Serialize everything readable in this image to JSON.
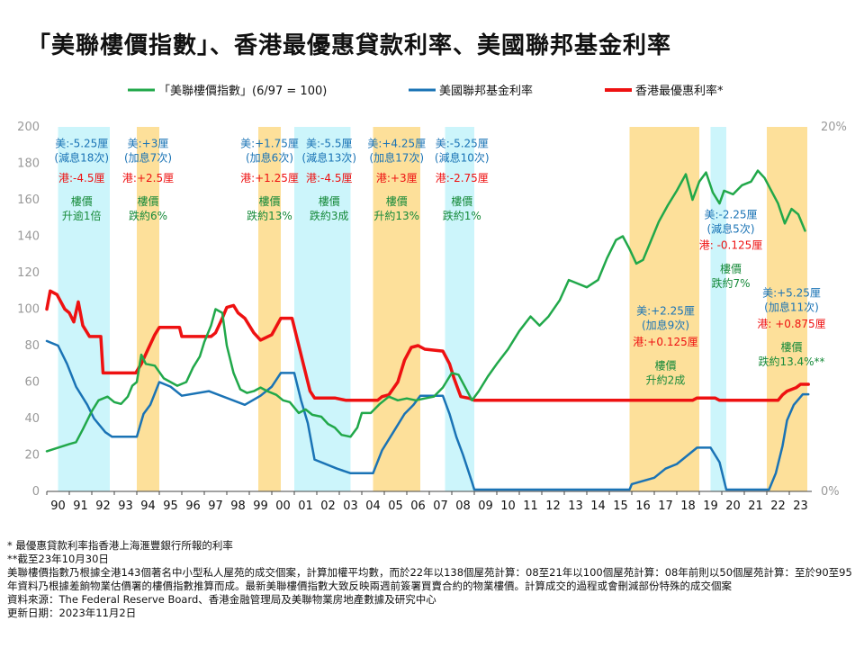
{
  "title": "「美聯樓價指數」、香港最優惠貸款利率、美國聯邦基金利率",
  "chart_data": {
    "type": "line",
    "legend": [
      {
        "label": "「美聯樓價指數」(6/97 = 100)",
        "color": "#21a84a"
      },
      {
        "label": "美國聯邦基金利率",
        "color": "#1a73b5"
      },
      {
        "label": "香港最優惠利率*",
        "color": "#ee1111"
      }
    ],
    "legend_position": "top",
    "xlim": [
      1990,
      2024
    ],
    "x_ticks": [
      "90",
      "91",
      "92",
      "93",
      "94",
      "95",
      "96",
      "97",
      "98",
      "99",
      "00",
      "01",
      "02",
      "03",
      "04",
      "05",
      "06",
      "07",
      "08",
      "09",
      "10",
      "11",
      "12",
      "13",
      "14",
      "15",
      "16",
      "17",
      "18",
      "19",
      "20",
      "21",
      "22",
      "23"
    ],
    "y_left": {
      "min": 0,
      "max": 200,
      "ticks": [
        "0",
        "20",
        "40",
        "60",
        "80",
        "100",
        "120",
        "140",
        "160",
        "180",
        "200"
      ]
    },
    "y_right": {
      "min": 0,
      "max": 20,
      "ticks": [
        "0%",
        "20%"
      ]
    },
    "grid": false,
    "easing_periods": [
      [
        1990.5,
        1992.8
      ],
      [
        2001.0,
        2003.5
      ],
      [
        2007.7,
        2009.0
      ],
      [
        2019.5,
        2020.2
      ]
    ],
    "tightening_periods": [
      [
        1994.0,
        1995.0
      ],
      [
        1999.4,
        2000.4
      ],
      [
        2004.5,
        2006.6
      ],
      [
        2015.9,
        2019.0
      ],
      [
        2022.0,
        2023.8
      ]
    ],
    "series": [
      {
        "name": "「美聯樓價指數」(6/97 = 100)",
        "axis": "left",
        "color": "#21a84a",
        "points": [
          [
            1990.0,
            22
          ],
          [
            1990.5,
            24
          ],
          [
            1991.0,
            26
          ],
          [
            1991.3,
            27
          ],
          [
            1991.6,
            34
          ],
          [
            1992.0,
            44
          ],
          [
            1992.3,
            50
          ],
          [
            1992.7,
            52
          ],
          [
            1993.0,
            49
          ],
          [
            1993.3,
            48
          ],
          [
            1993.6,
            52
          ],
          [
            1993.8,
            58
          ],
          [
            1994.0,
            60
          ],
          [
            1994.2,
            75
          ],
          [
            1994.4,
            70
          ],
          [
            1994.8,
            69
          ],
          [
            1995.2,
            62
          ],
          [
            1995.5,
            60
          ],
          [
            1995.8,
            58
          ],
          [
            1996.2,
            60
          ],
          [
            1996.5,
            68
          ],
          [
            1996.8,
            74
          ],
          [
            1997.0,
            82
          ],
          [
            1997.3,
            91
          ],
          [
            1997.5,
            100
          ],
          [
            1997.8,
            98
          ],
          [
            1998.0,
            80
          ],
          [
            1998.3,
            65
          ],
          [
            1998.6,
            56
          ],
          [
            1998.9,
            54
          ],
          [
            1999.2,
            55
          ],
          [
            1999.5,
            57
          ],
          [
            1999.8,
            55
          ],
          [
            2000.2,
            53
          ],
          [
            2000.5,
            50
          ],
          [
            2000.8,
            49
          ],
          [
            2001.2,
            43
          ],
          [
            2001.5,
            45
          ],
          [
            2001.8,
            42
          ],
          [
            2002.2,
            41
          ],
          [
            2002.5,
            37
          ],
          [
            2002.8,
            35
          ],
          [
            2003.1,
            31
          ],
          [
            2003.5,
            30
          ],
          [
            2003.8,
            35
          ],
          [
            2004.0,
            43
          ],
          [
            2004.4,
            43
          ],
          [
            2004.8,
            48
          ],
          [
            2005.2,
            52
          ],
          [
            2005.6,
            50
          ],
          [
            2006.0,
            51
          ],
          [
            2006.4,
            50
          ],
          [
            2006.8,
            51
          ],
          [
            2007.2,
            52
          ],
          [
            2007.6,
            57
          ],
          [
            2008.0,
            65
          ],
          [
            2008.3,
            64
          ],
          [
            2008.6,
            57
          ],
          [
            2008.9,
            50
          ],
          [
            2009.2,
            55
          ],
          [
            2009.6,
            63
          ],
          [
            2010.0,
            70
          ],
          [
            2010.5,
            78
          ],
          [
            2011.0,
            88
          ],
          [
            2011.5,
            96
          ],
          [
            2011.9,
            91
          ],
          [
            2012.3,
            96
          ],
          [
            2012.8,
            105
          ],
          [
            2013.2,
            116
          ],
          [
            2013.6,
            114
          ],
          [
            2014.0,
            112
          ],
          [
            2014.5,
            116
          ],
          [
            2014.9,
            128
          ],
          [
            2015.3,
            138
          ],
          [
            2015.6,
            140
          ],
          [
            2015.9,
            133
          ],
          [
            2016.2,
            125
          ],
          [
            2016.5,
            127
          ],
          [
            2016.8,
            136
          ],
          [
            2017.2,
            148
          ],
          [
            2017.6,
            157
          ],
          [
            2018.0,
            165
          ],
          [
            2018.4,
            174
          ],
          [
            2018.7,
            160
          ],
          [
            2019.0,
            170
          ],
          [
            2019.3,
            175
          ],
          [
            2019.6,
            164
          ],
          [
            2019.9,
            158
          ],
          [
            2020.1,
            165
          ],
          [
            2020.5,
            163
          ],
          [
            2020.9,
            168
          ],
          [
            2021.3,
            170
          ],
          [
            2021.6,
            176
          ],
          [
            2021.9,
            172
          ],
          [
            2022.2,
            165
          ],
          [
            2022.5,
            158
          ],
          [
            2022.8,
            147
          ],
          [
            2023.1,
            155
          ],
          [
            2023.4,
            152
          ],
          [
            2023.7,
            143
          ]
        ]
      },
      {
        "name": "美國聯邦基金利率",
        "axis": "right",
        "color": "#1a73b5",
        "points": [
          [
            1990.0,
            8.25
          ],
          [
            1990.5,
            8.0
          ],
          [
            1990.9,
            7.0
          ],
          [
            1991.3,
            5.75
          ],
          [
            1991.8,
            4.75
          ],
          [
            1992.1,
            4.0
          ],
          [
            1992.6,
            3.25
          ],
          [
            1992.9,
            3.0
          ],
          [
            1994.0,
            3.0
          ],
          [
            1994.3,
            4.25
          ],
          [
            1994.6,
            4.75
          ],
          [
            1995.0,
            6.0
          ],
          [
            1995.5,
            5.75
          ],
          [
            1996.0,
            5.25
          ],
          [
            1997.2,
            5.5
          ],
          [
            1998.8,
            4.75
          ],
          [
            1999.5,
            5.25
          ],
          [
            2000.0,
            5.75
          ],
          [
            2000.4,
            6.5
          ],
          [
            2001.0,
            6.5
          ],
          [
            2001.3,
            5.0
          ],
          [
            2001.6,
            3.75
          ],
          [
            2001.9,
            1.75
          ],
          [
            2002.9,
            1.25
          ],
          [
            2003.5,
            1.0
          ],
          [
            2004.5,
            1.0
          ],
          [
            2004.9,
            2.25
          ],
          [
            2005.4,
            3.25
          ],
          [
            2005.9,
            4.25
          ],
          [
            2006.3,
            4.75
          ],
          [
            2006.6,
            5.25
          ],
          [
            2007.6,
            5.25
          ],
          [
            2007.9,
            4.25
          ],
          [
            2008.2,
            3.0
          ],
          [
            2008.5,
            2.0
          ],
          [
            2008.9,
            0.5
          ],
          [
            2009.0,
            0.1
          ],
          [
            2015.9,
            0.1
          ],
          [
            2016.0,
            0.4
          ],
          [
            2017.0,
            0.75
          ],
          [
            2017.5,
            1.25
          ],
          [
            2018.0,
            1.5
          ],
          [
            2018.5,
            2.0
          ],
          [
            2018.9,
            2.4
          ],
          [
            2019.5,
            2.4
          ],
          [
            2019.9,
            1.6
          ],
          [
            2020.2,
            0.1
          ],
          [
            2022.1,
            0.1
          ],
          [
            2022.4,
            1.0
          ],
          [
            2022.7,
            2.5
          ],
          [
            2022.9,
            3.9
          ],
          [
            2023.2,
            4.75
          ],
          [
            2023.6,
            5.33
          ],
          [
            2023.85,
            5.33
          ]
        ]
      },
      {
        "name": "香港最優惠利率*",
        "axis": "left",
        "color": "#ee1111",
        "points": [
          [
            1990.0,
            100
          ],
          [
            1990.15,
            110
          ],
          [
            1990.45,
            108
          ],
          [
            1990.8,
            100
          ],
          [
            1991.0,
            98
          ],
          [
            1991.2,
            93
          ],
          [
            1991.4,
            104
          ],
          [
            1991.6,
            91
          ],
          [
            1991.9,
            85
          ],
          [
            1992.4,
            85
          ],
          [
            1992.5,
            65
          ],
          [
            1993.95,
            65
          ],
          [
            1994.2,
            70
          ],
          [
            1994.5,
            78
          ],
          [
            1994.8,
            86
          ],
          [
            1995.0,
            90
          ],
          [
            1995.9,
            90
          ],
          [
            1996.0,
            85
          ],
          [
            1997.3,
            85
          ],
          [
            1997.5,
            87
          ],
          [
            1997.8,
            95
          ],
          [
            1998.0,
            101
          ],
          [
            1998.3,
            102
          ],
          [
            1998.5,
            98
          ],
          [
            1998.8,
            95
          ],
          [
            1999.2,
            87
          ],
          [
            1999.5,
            83
          ],
          [
            2000.0,
            86
          ],
          [
            2000.4,
            95
          ],
          [
            2000.9,
            95
          ],
          [
            2001.1,
            85
          ],
          [
            2001.4,
            70
          ],
          [
            2001.7,
            55
          ],
          [
            2001.9,
            51.25
          ],
          [
            2002.8,
            51.25
          ],
          [
            2003.3,
            50
          ],
          [
            2004.7,
            50
          ],
          [
            2004.9,
            52
          ],
          [
            2005.2,
            53
          ],
          [
            2005.6,
            60
          ],
          [
            2005.9,
            72
          ],
          [
            2006.2,
            79
          ],
          [
            2006.5,
            80
          ],
          [
            2006.8,
            78
          ],
          [
            2007.6,
            77
          ],
          [
            2007.9,
            70
          ],
          [
            2008.1,
            62
          ],
          [
            2008.4,
            52
          ],
          [
            2008.8,
            51
          ],
          [
            2009.0,
            50
          ],
          [
            2018.7,
            50
          ],
          [
            2018.9,
            51.25
          ],
          [
            2019.7,
            51.25
          ],
          [
            2019.9,
            50
          ],
          [
            2022.5,
            50
          ],
          [
            2022.7,
            53
          ],
          [
            2022.9,
            55
          ],
          [
            2023.3,
            56.9
          ],
          [
            2023.5,
            58.75
          ],
          [
            2023.85,
            58.75
          ]
        ]
      }
    ],
    "annotations": [
      {
        "x": 1991.55,
        "y": 189,
        "color": "blue",
        "lines": [
          "美:-5.25厘",
          "(減息18次)"
        ]
      },
      {
        "x": 1991.55,
        "y": 170,
        "color": "red",
        "lines": [
          "港:-4.5厘"
        ]
      },
      {
        "x": 1991.55,
        "y": 157,
        "color": "green",
        "lines": [
          "樓價",
          "升逾1倍"
        ]
      },
      {
        "x": 1994.5,
        "y": 189,
        "color": "blue",
        "lines": [
          "美:+3厘",
          "(加息7次)"
        ]
      },
      {
        "x": 1994.5,
        "y": 170,
        "color": "red",
        "lines": [
          "港:+2.5厘"
        ]
      },
      {
        "x": 1994.5,
        "y": 157,
        "color": "green",
        "lines": [
          "樓價",
          "跌約6%"
        ]
      },
      {
        "x": 1999.9,
        "y": 189,
        "color": "blue",
        "lines": [
          "美:+1.75厘",
          "(加息6次)"
        ]
      },
      {
        "x": 1999.9,
        "y": 170,
        "color": "red",
        "lines": [
          "港:+1.25厘"
        ]
      },
      {
        "x": 1999.9,
        "y": 157,
        "color": "green",
        "lines": [
          "樓價",
          "跌約13%"
        ]
      },
      {
        "x": 2002.55,
        "y": 189,
        "color": "blue",
        "lines": [
          "美:-5.5厘",
          "(減息13次)"
        ]
      },
      {
        "x": 2002.55,
        "y": 170,
        "color": "red",
        "lines": [
          "港:-4.5厘"
        ]
      },
      {
        "x": 2002.55,
        "y": 157,
        "color": "green",
        "lines": [
          "樓價",
          "跌約3成"
        ]
      },
      {
        "x": 2005.55,
        "y": 189,
        "color": "blue",
        "lines": [
          "美:+4.25厘",
          "(加息17次)"
        ]
      },
      {
        "x": 2005.55,
        "y": 170,
        "color": "red",
        "lines": [
          "港:+3厘"
        ]
      },
      {
        "x": 2005.55,
        "y": 157,
        "color": "green",
        "lines": [
          "樓價",
          "升約13%"
        ]
      },
      {
        "x": 2008.45,
        "y": 189,
        "color": "blue",
        "lines": [
          "美:-5.25厘",
          "(減息10次)"
        ]
      },
      {
        "x": 2008.45,
        "y": 170,
        "color": "red",
        "lines": [
          "港:-2.75厘"
        ]
      },
      {
        "x": 2008.45,
        "y": 157,
        "color": "green",
        "lines": [
          "樓價",
          "跌約1%"
        ]
      },
      {
        "x": 2017.5,
        "y": 97,
        "color": "blue",
        "lines": [
          "美:+2.25厘",
          "(加息9次)"
        ]
      },
      {
        "x": 2017.5,
        "y": 80,
        "color": "red",
        "lines": [
          "港:+0.125厘"
        ]
      },
      {
        "x": 2017.5,
        "y": 67,
        "color": "green",
        "lines": [
          "樓價",
          "升約2成"
        ]
      },
      {
        "x": 2020.4,
        "y": 150,
        "color": "blue",
        "lines": [
          "美:-2.25厘",
          "(減息5次)"
        ]
      },
      {
        "x": 2020.4,
        "y": 133,
        "color": "red",
        "lines": [
          "港: -0.125厘"
        ]
      },
      {
        "x": 2020.4,
        "y": 120,
        "color": "green",
        "lines": [
          "樓價",
          "跌約7%"
        ]
      },
      {
        "x": 2023.1,
        "y": 107,
        "color": "blue",
        "lines": [
          "美:+5.25厘",
          "(加息11次)"
        ]
      },
      {
        "x": 2023.1,
        "y": 90,
        "color": "red",
        "lines": [
          "港: +0.875厘"
        ]
      },
      {
        "x": 2023.1,
        "y": 77,
        "color": "green",
        "lines": [
          "樓價",
          "跌約13.4%**"
        ]
      }
    ]
  },
  "notes": [
    "* 最優惠貸款利率指香港上海滙豐銀行所報的利率",
    "**截至23年10月30日",
    "美聯樓價指數乃根據全港143個著名中小型私人屋苑的成交個案，計算加權平均數，而於22年以138個屋苑計算：08至21年以100個屋苑計算：08年前則以50個屋苑計算：至於90至95年資料乃根據差餉物業估價署的樓價指數推算而成。最新美聯樓價指數大致反映兩週前簽署買賣合約的物業樓價。計算成交的過程或會刪減部份特殊的成交個案",
    "資料來源：The Federal Reserve Board、香港金融管理局及美聯物業房地產數據及研究中心",
    "更新日期：2023年11月2日"
  ]
}
